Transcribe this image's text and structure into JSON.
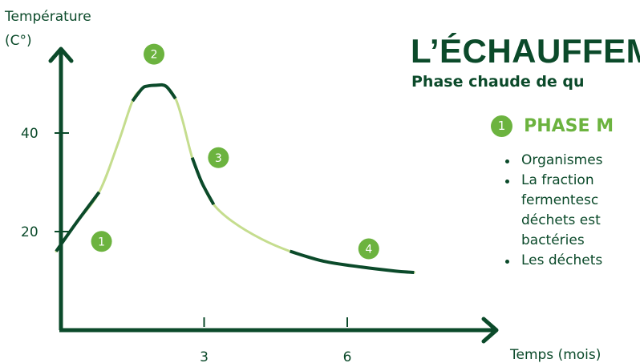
{
  "title": "L’ÉCHAUFFEM",
  "subtitle": "Phase chaude de qu",
  "phase_1": {
    "badge": "1",
    "title": "PHASE M",
    "bullets": [
      "Organismes",
      "La fraction",
      "fermentesc",
      "déchets est",
      "bactéries",
      "Les déchets"
    ]
  },
  "colors": {
    "dark_green": "#0b4a2a",
    "light_green": "#c5dd8e",
    "badge_green": "#6cb33f"
  },
  "chart_data": {
    "type": "line",
    "ylabel_line1": "Température",
    "ylabel_line2": "(C°)",
    "xlabel": "Temps (mois)",
    "x_ticks": [
      3,
      6
    ],
    "y_ticks": [
      20,
      40
    ],
    "xlim": [
      0,
      9
    ],
    "ylim": [
      0,
      62
    ],
    "series": [
      {
        "x": [
          -0.1,
          0.3,
          0.8,
          1.2,
          1.5,
          1.7,
          1.8,
          2.0,
          2.2,
          2.4,
          2.55,
          2.75,
          2.95,
          3.2,
          3.6,
          4.2,
          4.8,
          5.5,
          6.3,
          7.0,
          7.4
        ],
        "y": [
          16,
          21.5,
          28,
          38,
          46.5,
          49,
          49.5,
          49.7,
          49.5,
          47,
          42.5,
          35,
          30,
          25.5,
          22,
          18.5,
          16,
          14,
          12.8,
          12,
          11.7
        ]
      }
    ],
    "phases": [
      {
        "label": "1",
        "x": 0.85,
        "y": 18
      },
      {
        "label": "2",
        "x": 1.95,
        "y": 56
      },
      {
        "label": "3",
        "x": 3.3,
        "y": 35
      },
      {
        "label": "4",
        "x": 6.45,
        "y": 16.5
      }
    ]
  }
}
